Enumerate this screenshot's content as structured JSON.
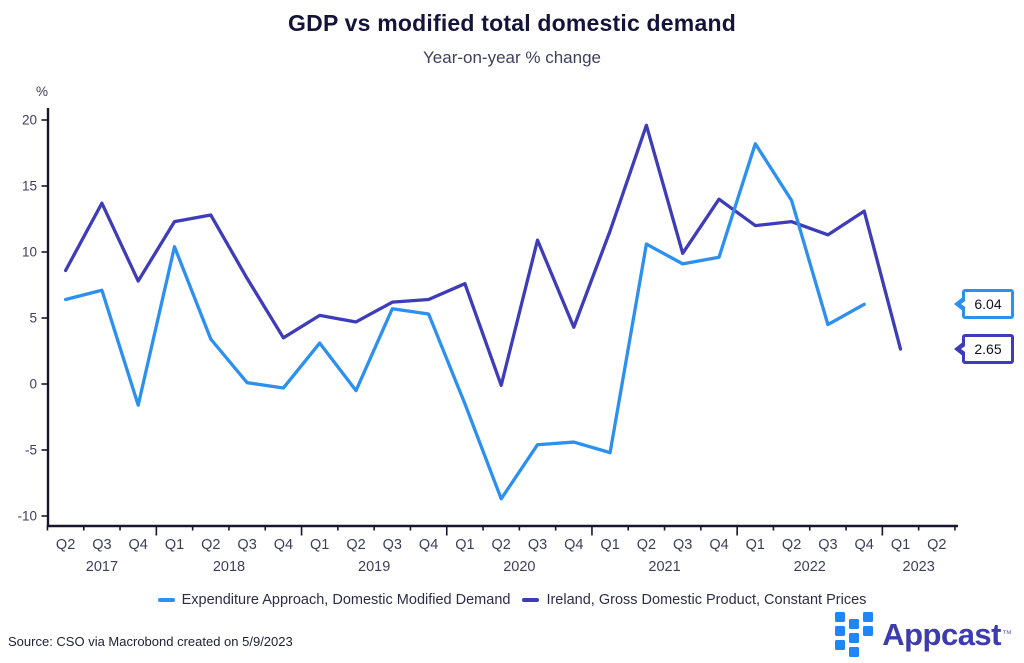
{
  "header": {
    "title": "GDP vs modified total domestic demand",
    "subtitle": "Year-on-year % change"
  },
  "chart_data": {
    "type": "line",
    "title": "GDP vs modified total domestic demand",
    "subtitle": "Year-on-year % change",
    "unit_label": "%",
    "grid": false,
    "legend_position": "bottom",
    "ylim": [
      -10,
      20
    ],
    "yticks": [
      20,
      15,
      10,
      5,
      0,
      -5,
      -10
    ],
    "x_tick_labels": [
      "Q2",
      "Q3",
      "Q4",
      "Q1",
      "Q2",
      "Q3",
      "Q4",
      "Q1",
      "Q2",
      "Q3",
      "Q4",
      "Q1",
      "Q2",
      "Q3",
      "Q4",
      "Q1",
      "Q2",
      "Q3",
      "Q4",
      "Q1",
      "Q2",
      "Q3",
      "Q4",
      "Q1",
      "Q2"
    ],
    "year_groups": [
      {
        "label": "2017",
        "span": [
          0,
          2
        ]
      },
      {
        "label": "2018",
        "span": [
          3,
          6
        ]
      },
      {
        "label": "2019",
        "span": [
          7,
          10
        ]
      },
      {
        "label": "2020",
        "span": [
          11,
          14
        ]
      },
      {
        "label": "2021",
        "span": [
          15,
          18
        ]
      },
      {
        "label": "2022",
        "span": [
          19,
          22
        ]
      },
      {
        "label": "2023",
        "span": [
          23,
          24
        ]
      }
    ],
    "series": [
      {
        "name": "Expenditure Approach, Domestic Modified Demand",
        "color": "#2b90f0",
        "values": [
          6.4,
          7.1,
          -1.6,
          10.4,
          3.4,
          0.1,
          -0.3,
          3.1,
          -0.5,
          5.7,
          5.3,
          -1.5,
          -8.7,
          -4.6,
          -4.4,
          -5.2,
          10.6,
          9.1,
          9.6,
          18.2,
          13.9,
          4.5,
          6.04
        ]
      },
      {
        "name": "Ireland, Gross Domestic Product, Constant Prices",
        "color": "#3e3cb9",
        "values": [
          8.6,
          13.7,
          7.8,
          12.3,
          12.8,
          8.0,
          3.5,
          5.2,
          4.7,
          6.2,
          6.4,
          7.6,
          -0.1,
          10.9,
          4.3,
          11.6,
          19.6,
          9.9,
          14.0,
          12.0,
          12.3,
          11.3,
          13.1,
          2.65
        ]
      }
    ]
  },
  "callouts": [
    {
      "value": "6.04",
      "series_index": 0
    },
    {
      "value": "2.65",
      "series_index": 1
    }
  ],
  "footer": {
    "source": "Source: CSO via Macrobond created on 5/9/2023",
    "brand": "Appcast",
    "trademark": "™",
    "brand_color": "#3c3cae",
    "mark_color": "#1f86f6"
  }
}
